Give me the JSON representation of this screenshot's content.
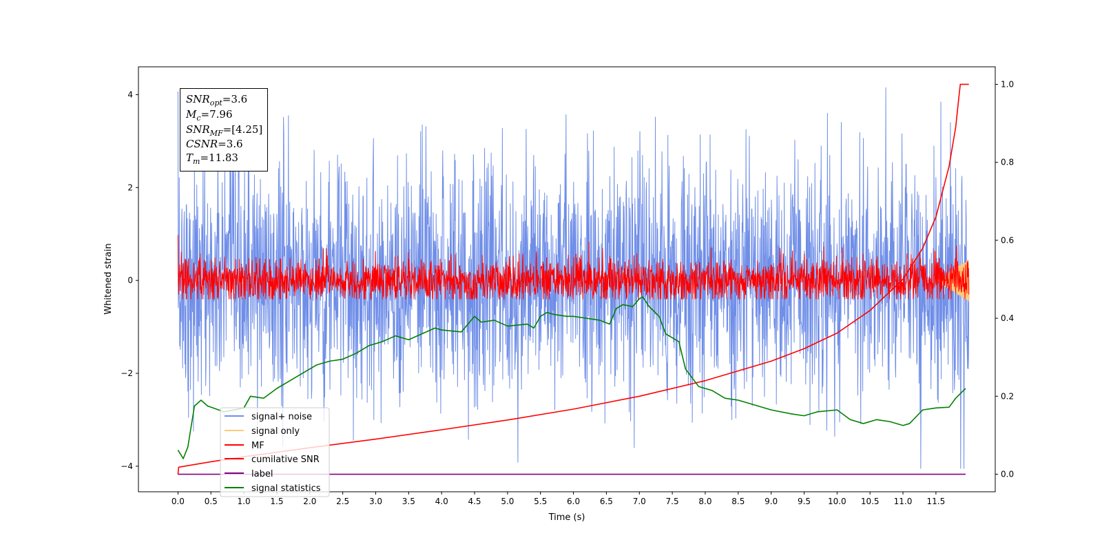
{
  "chart_data": {
    "type": "line",
    "title": "",
    "xlabel": "Time (s)",
    "ylabel": "Whitened strain",
    "xlim": [
      -0.6,
      12.4
    ],
    "ylim": [
      -4.55,
      4.6
    ],
    "y2lim": [
      -0.045,
      1.045
    ],
    "x_ticks": [
      "0.0",
      "0.5",
      "1.0",
      "1.5",
      "2.0",
      "2.5",
      "3.0",
      "3.5",
      "4.0",
      "4.5",
      "5.0",
      "5.5",
      "6.0",
      "6.5",
      "7.0",
      "7.5",
      "8.0",
      "8.5",
      "9.0",
      "9.5",
      "10.0",
      "10.5",
      "11.0",
      "11.5"
    ],
    "y_ticks": [
      "−4",
      "−2",
      "0",
      "2",
      "4"
    ],
    "y2_ticks": [
      "0.0",
      "0.2",
      "0.4",
      "0.6",
      "0.8",
      "1.0"
    ],
    "legend_position": "lower-left",
    "series": [
      {
        "name": "signal+ noise",
        "color": "#6f8ee8",
        "axis": "left",
        "kind": "noise",
        "x_range": [
          0.0,
          12.0
        ],
        "center": 0.0,
        "typical_spread": 1.3,
        "max": 4.15,
        "min": -4.05
      },
      {
        "name": "signal only",
        "color": "#ffc97a",
        "axis": "left",
        "kind": "chirp",
        "x_range": [
          11.5,
          12.0
        ],
        "max_amplitude": 0.45
      },
      {
        "name": "MF",
        "color": "#ff0000",
        "axis": "left",
        "kind": "noise",
        "x_range": [
          0.0,
          12.0
        ],
        "center": 0.0,
        "typical_spread": 0.25,
        "max": 1.0,
        "min": -0.4
      },
      {
        "name": "cumilative SNR",
        "color": "#ff0000",
        "axis": "right",
        "x": [
          0.0,
          0.01,
          0.5,
          1.0,
          2.0,
          3.0,
          4.0,
          5.0,
          6.0,
          7.0,
          8.0,
          9.0,
          9.5,
          10.0,
          10.5,
          11.0,
          11.3,
          11.5,
          11.7,
          11.8,
          11.85,
          11.87,
          12.0
        ],
        "values": [
          0.0,
          0.018,
          0.032,
          0.045,
          0.068,
          0.09,
          0.114,
          0.139,
          0.167,
          0.2,
          0.24,
          0.29,
          0.322,
          0.362,
          0.42,
          0.5,
          0.58,
          0.66,
          0.79,
          0.89,
          0.97,
          1.0,
          1.0
        ]
      },
      {
        "name": "label",
        "color": "#800080",
        "axis": "right",
        "x": [
          0.0,
          11.95
        ],
        "values": [
          0.0,
          0.0
        ]
      },
      {
        "name": "signal statistics",
        "color": "#008000",
        "axis": "right",
        "x": [
          0.0,
          0.08,
          0.15,
          0.25,
          0.35,
          0.45,
          0.5,
          0.7,
          1.0,
          1.1,
          1.3,
          1.5,
          1.7,
          1.9,
          2.1,
          2.3,
          2.5,
          2.7,
          2.9,
          3.1,
          3.3,
          3.5,
          3.7,
          3.9,
          4.0,
          4.3,
          4.5,
          4.6,
          4.8,
          5.0,
          5.3,
          5.4,
          5.5,
          5.6,
          5.7,
          5.9,
          6.0,
          6.2,
          6.4,
          6.55,
          6.65,
          6.75,
          6.9,
          7.0,
          7.05,
          7.15,
          7.3,
          7.4,
          7.6,
          7.7,
          7.9,
          8.1,
          8.3,
          8.5,
          8.7,
          9.0,
          9.3,
          9.5,
          9.7,
          10.0,
          10.2,
          10.4,
          10.6,
          10.8,
          11.0,
          11.1,
          11.3,
          11.5,
          11.7,
          11.8,
          11.95
        ],
        "values": [
          0.062,
          0.04,
          0.07,
          0.175,
          0.19,
          0.175,
          0.172,
          0.16,
          0.17,
          0.2,
          0.195,
          0.22,
          0.24,
          0.26,
          0.28,
          0.29,
          0.295,
          0.31,
          0.33,
          0.34,
          0.355,
          0.345,
          0.36,
          0.375,
          0.37,
          0.365,
          0.405,
          0.39,
          0.395,
          0.38,
          0.385,
          0.375,
          0.405,
          0.415,
          0.41,
          0.405,
          0.405,
          0.4,
          0.395,
          0.385,
          0.425,
          0.435,
          0.43,
          0.45,
          0.455,
          0.43,
          0.405,
          0.36,
          0.34,
          0.27,
          0.225,
          0.215,
          0.195,
          0.19,
          0.18,
          0.165,
          0.155,
          0.15,
          0.16,
          0.165,
          0.14,
          0.13,
          0.14,
          0.135,
          0.125,
          0.13,
          0.165,
          0.17,
          0.172,
          0.195,
          0.22
        ]
      }
    ]
  },
  "info_box": {
    "line1": {
      "base": "SNR",
      "sub": "opt",
      "value": "=3.6"
    },
    "line2": {
      "base": "M",
      "sub": "c",
      "value": "=7.96"
    },
    "line3": {
      "base": "SNR",
      "sub": "MF",
      "value": "=[4.25]"
    },
    "line4": {
      "base": "CSNR",
      "value": "=3.6"
    },
    "line5": {
      "base": "T",
      "sub": "m",
      "value": "=11.83"
    }
  }
}
